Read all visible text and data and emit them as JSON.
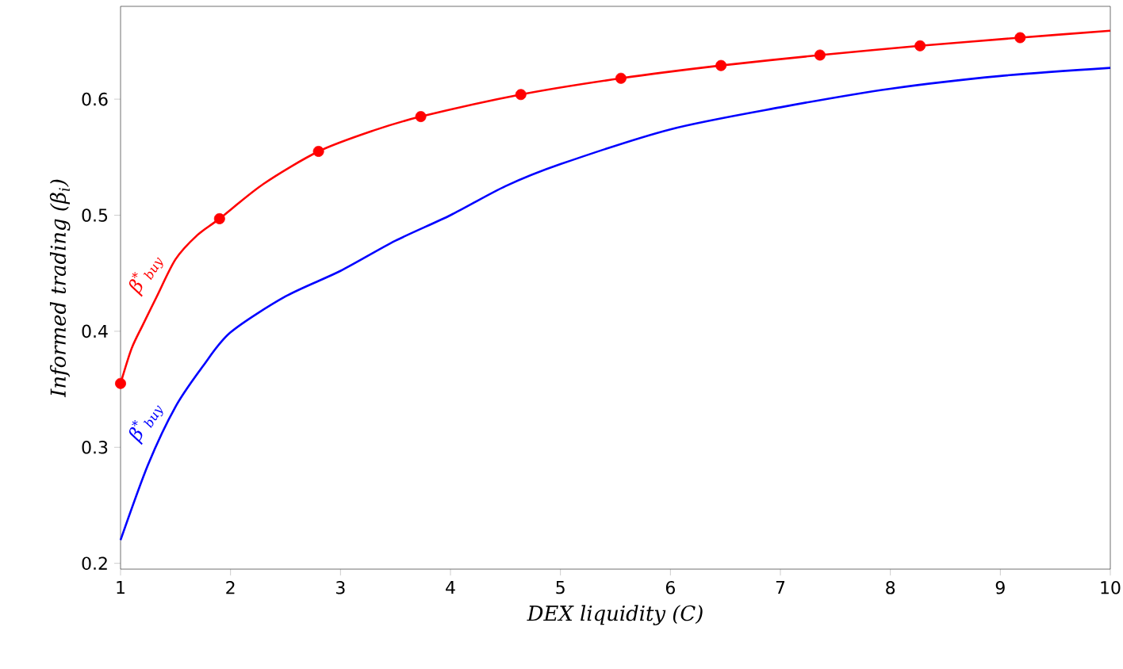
{
  "chart_data": {
    "type": "line",
    "xlabel": "DEX liquidity (C)",
    "ylabel": "Informed trading (β$_{i}$)",
    "xlim": [
      1,
      10
    ],
    "ylim": [
      0.195,
      0.68
    ],
    "xticks": [
      1,
      2,
      3,
      4,
      5,
      6,
      7,
      8,
      9,
      10
    ],
    "yticks": [
      0.2,
      0.3,
      0.4,
      0.5,
      0.6
    ],
    "series": [
      {
        "color": "#ff0000",
        "marker": "none",
        "line_style": "solid",
        "x": [
          1,
          1.1,
          1.2,
          1.33,
          1.5,
          1.7,
          1.9,
          2.3,
          2.8,
          3.3,
          3.73,
          4.64,
          5.55,
          6.46,
          7.36,
          8.27,
          9.18,
          10
        ],
        "values": [
          0.355,
          0.385,
          0.405,
          0.43,
          0.462,
          0.483,
          0.497,
          0.527,
          0.555,
          0.573,
          0.585,
          0.604,
          0.618,
          0.629,
          0.638,
          0.646,
          0.653,
          0.659
        ]
      },
      {
        "type": "scatter",
        "color": "#ff0000",
        "marker": "circle",
        "x": [
          1,
          1.9,
          2.8,
          3.73,
          4.64,
          5.55,
          6.46,
          7.36,
          8.27,
          9.18
        ],
        "values": [
          0.355,
          0.497,
          0.555,
          0.585,
          0.604,
          0.618,
          0.629,
          0.638,
          0.646,
          0.653
        ]
      },
      {
        "color": "#0000ff",
        "marker": "none",
        "line_style": "solid",
        "x": [
          1,
          1.25,
          1.5,
          1.75,
          2,
          2.5,
          3,
          3.5,
          4,
          4.5,
          5,
          6,
          7,
          8,
          9,
          10
        ],
        "values": [
          0.22,
          0.285,
          0.335,
          0.37,
          0.399,
          0.43,
          0.452,
          0.478,
          0.5,
          0.525,
          0.544,
          0.574,
          0.593,
          0.609,
          0.62,
          0.627
        ]
      }
    ],
    "annotations": [
      "β$^{*}$$_{buy}$",
      "β$^{*}$$_{buy}$"
    ]
  }
}
